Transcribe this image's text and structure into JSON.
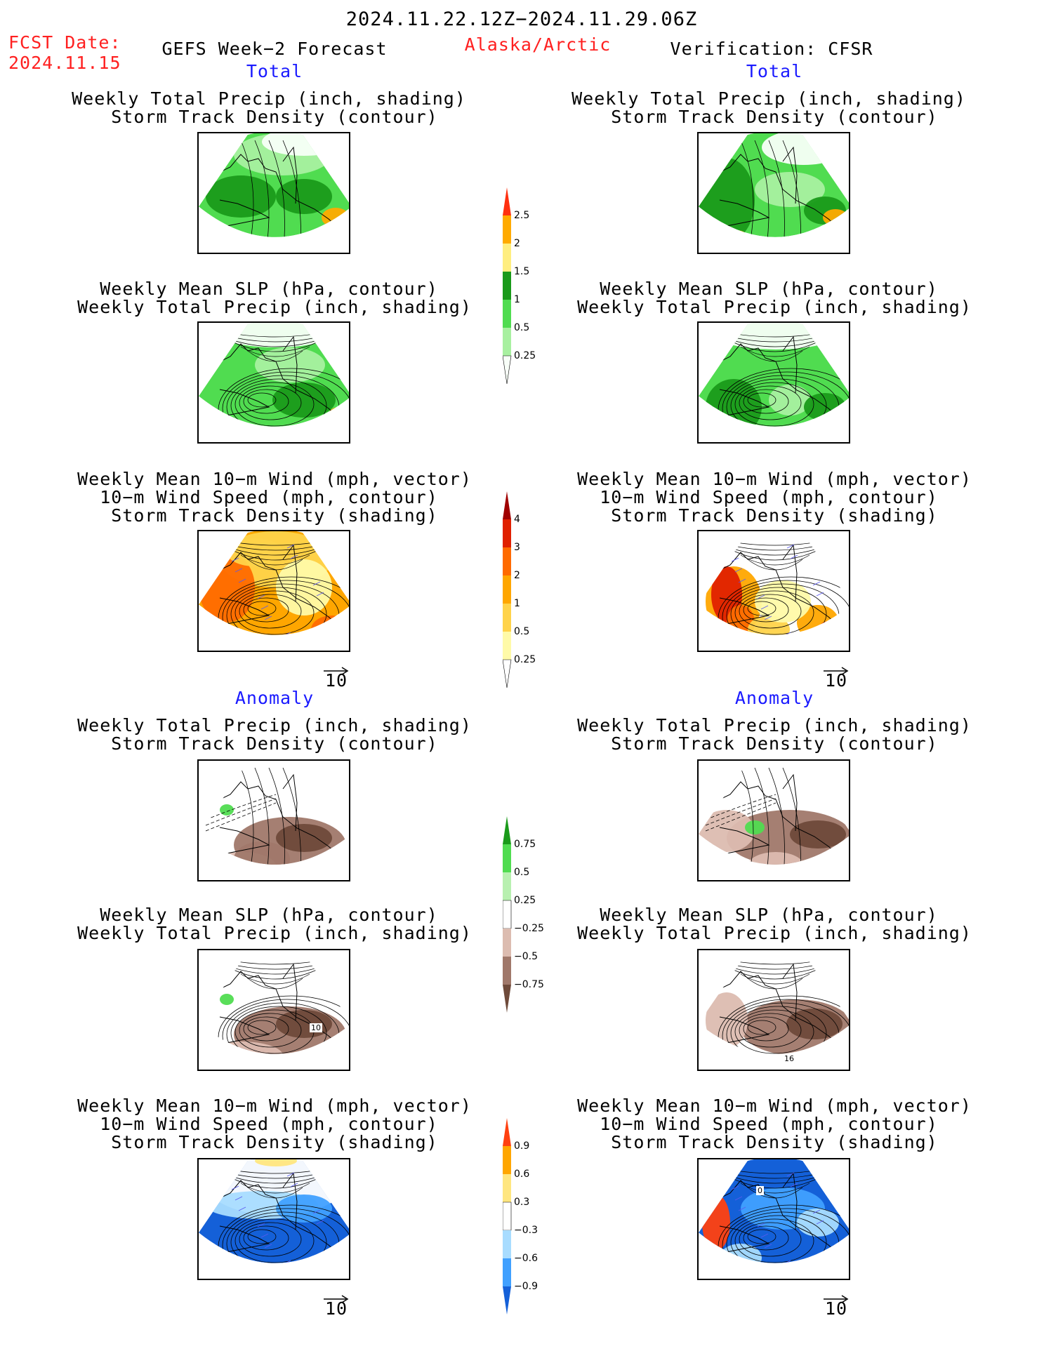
{
  "header": {
    "period": "2024.11.22.12Z−2024.11.29.06Z",
    "fcst_label": "FCST Date:",
    "fcst_date": "2024.11.15",
    "model": "GEFS Week−2 Forecast",
    "region": "Alaska/Arctic",
    "verification": "Verification: CFSR"
  },
  "sections": {
    "total": "Total",
    "anomaly": "Anomaly"
  },
  "captions": {
    "precip_storm": [
      "Weekly Total Precip (inch, shading)",
      "Storm Track Density (contour)"
    ],
    "slp_precip": [
      "Weekly Mean SLP (hPa, contour)",
      "Weekly Total Precip (inch, shading)"
    ],
    "wind_storm": [
      "Weekly Mean 10−m Wind (mph, vector)",
      "10−m Wind Speed (mph, contour)",
      "Storm Track Density (shading)"
    ]
  },
  "vector_ref": "10",
  "contour_labels": {
    "gefs_slp_anom": "10",
    "cfsr_slp_anom": "16",
    "cfsr_wind_anom": "0"
  },
  "colorbars": {
    "precip_total": {
      "colors": [
        "#f8fff8",
        "#a8f0a0",
        "#50dc50",
        "#1a9a1a",
        "#ffee80",
        "#ffaa00",
        "#ff3010"
      ],
      "labels": [
        "0.25",
        "0.5",
        "1",
        "1.5",
        "2",
        "2.5"
      ]
    },
    "storm_total": {
      "colors": [
        "#fff",
        "#fffaa8",
        "#ffd34a",
        "#ffa600",
        "#ff6a00",
        "#e02000",
        "#a00000"
      ],
      "labels": [
        "0.25",
        "0.5",
        "1",
        "2",
        "3",
        "4"
      ]
    },
    "precip_anom": {
      "colors": [
        "#6e4a3a",
        "#a0786a",
        "#dcbcb0",
        "#fff",
        "#b8f0b0",
        "#50dc50",
        "#1a9a1a"
      ],
      "labels": [
        "−0.75",
        "−0.5",
        "−0.25",
        "0.25",
        "0.5",
        "0.75"
      ]
    },
    "storm_anom": {
      "colors": [
        "#1460d8",
        "#40a0ff",
        "#a8dcff",
        "#fff",
        "#ffe680",
        "#ffa600",
        "#ff4010"
      ],
      "labels": [
        "−0.9",
        "−0.6",
        "−0.3",
        "0.3",
        "0.6",
        "0.9"
      ]
    }
  }
}
